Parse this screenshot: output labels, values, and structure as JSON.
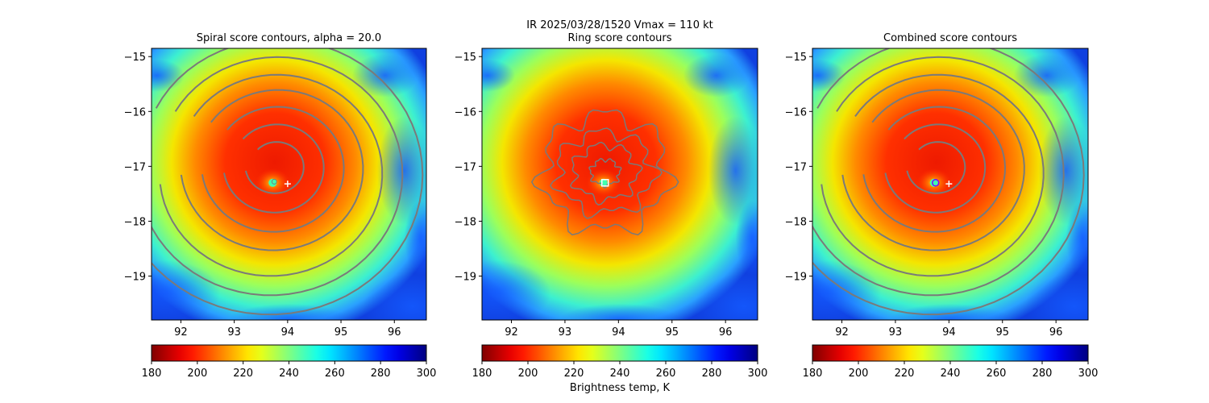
{
  "suptitle": "IR  2025/03/28/1520    Vmax = 110 kt",
  "colorbar_label": "Brightness temp, K",
  "chart_data": [
    {
      "type": "heatmap",
      "title": "Spiral score contours, alpha = 20.0",
      "overlay": "spiral",
      "xlim": [
        91.45,
        96.6
      ],
      "ylim": [
        -19.8,
        -14.85
      ],
      "xticks": [
        92,
        93,
        94,
        95,
        96
      ],
      "yticks": [
        -15,
        -16,
        -17,
        -18,
        -19
      ],
      "center_marker": {
        "lon": 94.0,
        "lat": -17.32,
        "symbol": "+"
      },
      "found_center": {
        "lon": 93.75,
        "lat": -17.28
      },
      "colorbar": {
        "min": 180,
        "max": 300,
        "ticks": [
          180,
          200,
          220,
          240,
          260,
          280,
          300
        ],
        "cmap": "jet_r"
      }
    },
    {
      "type": "heatmap",
      "title": "Ring score contours",
      "overlay": "ring",
      "xlim": [
        91.45,
        96.6
      ],
      "ylim": [
        -19.8,
        -14.85
      ],
      "xticks": [
        92,
        93,
        94,
        95,
        96
      ],
      "yticks": [
        -15,
        -16,
        -17,
        -18,
        -19
      ],
      "center_marker": {
        "lon": 93.75,
        "lat": -17.3,
        "symbol": "square"
      },
      "colorbar": {
        "min": 180,
        "max": 300,
        "ticks": [
          180,
          200,
          220,
          240,
          260,
          280,
          300
        ],
        "cmap": "jet_r"
      }
    },
    {
      "type": "heatmap",
      "title": "Combined score contours",
      "overlay": "spiral",
      "xlim": [
        91.45,
        96.6
      ],
      "ylim": [
        -19.8,
        -14.85
      ],
      "xticks": [
        92,
        93,
        94,
        95,
        96
      ],
      "yticks": [
        -15,
        -16,
        -17,
        -18,
        -19
      ],
      "center_marker": {
        "lon": 94.0,
        "lat": -17.32,
        "symbol": "+"
      },
      "found_center": {
        "lon": 93.75,
        "lat": -17.3,
        "symbol": "circle"
      },
      "colorbar": {
        "min": 180,
        "max": 300,
        "ticks": [
          180,
          200,
          220,
          240,
          260,
          280,
          300
        ],
        "cmap": "jet_r"
      }
    }
  ]
}
